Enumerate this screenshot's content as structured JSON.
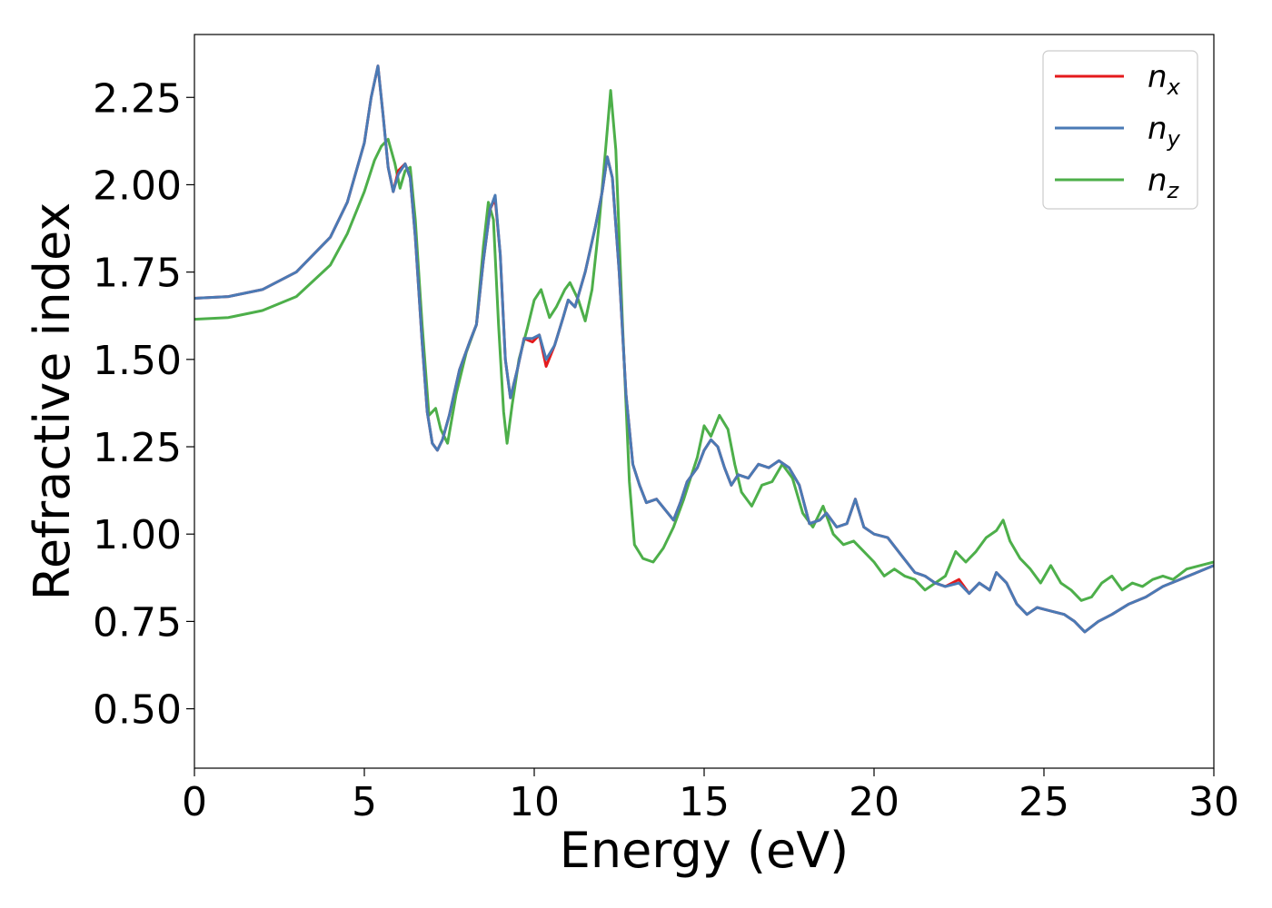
{
  "chart_data": {
    "type": "line",
    "title": "",
    "xlabel": "Energy (eV)",
    "ylabel": "Refractive index",
    "xlim": [
      0,
      30
    ],
    "ylim": [
      0.33,
      2.43
    ],
    "xticks": [
      0,
      5,
      10,
      15,
      20,
      25,
      30
    ],
    "xtick_labels": [
      "0",
      "5",
      "10",
      "15",
      "20",
      "25",
      "30"
    ],
    "yticks": [
      0.5,
      0.75,
      1.0,
      1.25,
      1.5,
      1.75,
      2.0,
      2.25
    ],
    "ytick_labels": [
      "0.50",
      "0.75",
      "1.00",
      "1.25",
      "1.50",
      "1.75",
      "2.00",
      "2.25"
    ],
    "grid": false,
    "legend_position": "top-right",
    "series": [
      {
        "name": "n",
        "subscript": "x",
        "color": "#e41a1c",
        "points": [
          [
            0,
            1.675
          ],
          [
            1,
            1.68
          ],
          [
            2,
            1.7
          ],
          [
            3,
            1.75
          ],
          [
            4,
            1.85
          ],
          [
            4.5,
            1.95
          ],
          [
            5,
            2.12
          ],
          [
            5.2,
            2.25
          ],
          [
            5.4,
            2.34
          ],
          [
            5.55,
            2.2
          ],
          [
            5.7,
            2.05
          ],
          [
            5.85,
            1.98
          ],
          [
            6.0,
            2.04
          ],
          [
            6.2,
            2.06
          ],
          [
            6.35,
            2.02
          ],
          [
            6.5,
            1.85
          ],
          [
            6.7,
            1.55
          ],
          [
            6.85,
            1.35
          ],
          [
            7.0,
            1.26
          ],
          [
            7.15,
            1.24
          ],
          [
            7.3,
            1.27
          ],
          [
            7.5,
            1.34
          ],
          [
            7.8,
            1.47
          ],
          [
            8.1,
            1.55
          ],
          [
            8.3,
            1.6
          ],
          [
            8.5,
            1.78
          ],
          [
            8.7,
            1.93
          ],
          [
            8.85,
            1.96
          ],
          [
            9.0,
            1.8
          ],
          [
            9.15,
            1.5
          ],
          [
            9.3,
            1.39
          ],
          [
            9.5,
            1.47
          ],
          [
            9.7,
            1.56
          ],
          [
            9.95,
            1.55
          ],
          [
            10.15,
            1.57
          ],
          [
            10.35,
            1.48
          ],
          [
            10.6,
            1.54
          ],
          [
            10.85,
            1.62
          ],
          [
            11.0,
            1.67
          ],
          [
            11.2,
            1.65
          ],
          [
            11.5,
            1.75
          ],
          [
            11.8,
            1.88
          ],
          [
            12.0,
            1.98
          ],
          [
            12.15,
            2.08
          ],
          [
            12.3,
            2.02
          ],
          [
            12.5,
            1.75
          ],
          [
            12.7,
            1.4
          ],
          [
            12.9,
            1.2
          ],
          [
            13.1,
            1.14
          ],
          [
            13.3,
            1.09
          ],
          [
            13.6,
            1.1
          ],
          [
            13.85,
            1.07
          ],
          [
            14.1,
            1.04
          ],
          [
            14.3,
            1.09
          ],
          [
            14.5,
            1.15
          ],
          [
            14.8,
            1.19
          ],
          [
            15.0,
            1.24
          ],
          [
            15.2,
            1.27
          ],
          [
            15.4,
            1.25
          ],
          [
            15.6,
            1.19
          ],
          [
            15.8,
            1.14
          ],
          [
            16.0,
            1.17
          ],
          [
            16.3,
            1.16
          ],
          [
            16.6,
            1.2
          ],
          [
            16.9,
            1.19
          ],
          [
            17.2,
            1.21
          ],
          [
            17.5,
            1.19
          ],
          [
            17.8,
            1.14
          ],
          [
            18.1,
            1.03
          ],
          [
            18.4,
            1.04
          ],
          [
            18.6,
            1.06
          ],
          [
            18.9,
            1.02
          ],
          [
            19.2,
            1.03
          ],
          [
            19.45,
            1.1
          ],
          [
            19.7,
            1.02
          ],
          [
            20.0,
            1.0
          ],
          [
            20.4,
            0.99
          ],
          [
            20.8,
            0.94
          ],
          [
            21.2,
            0.89
          ],
          [
            21.5,
            0.88
          ],
          [
            21.8,
            0.86
          ],
          [
            22.1,
            0.85
          ],
          [
            22.5,
            0.87
          ],
          [
            22.8,
            0.83
          ],
          [
            23.1,
            0.86
          ],
          [
            23.4,
            0.84
          ],
          [
            23.6,
            0.89
          ],
          [
            23.9,
            0.86
          ],
          [
            24.2,
            0.8
          ],
          [
            24.5,
            0.77
          ],
          [
            24.8,
            0.79
          ],
          [
            25.2,
            0.78
          ],
          [
            25.6,
            0.77
          ],
          [
            25.9,
            0.75
          ],
          [
            26.2,
            0.72
          ],
          [
            26.6,
            0.75
          ],
          [
            27.0,
            0.77
          ],
          [
            27.5,
            0.8
          ],
          [
            28.0,
            0.82
          ],
          [
            28.5,
            0.85
          ],
          [
            29.0,
            0.87
          ],
          [
            29.5,
            0.89
          ],
          [
            30.0,
            0.91
          ]
        ]
      },
      {
        "name": "n",
        "subscript": "y",
        "color": "#4a7ab5",
        "points": [
          [
            0,
            1.675
          ],
          [
            1,
            1.68
          ],
          [
            2,
            1.7
          ],
          [
            3,
            1.75
          ],
          [
            4,
            1.85
          ],
          [
            4.5,
            1.95
          ],
          [
            5,
            2.12
          ],
          [
            5.2,
            2.25
          ],
          [
            5.4,
            2.34
          ],
          [
            5.55,
            2.2
          ],
          [
            5.7,
            2.05
          ],
          [
            5.85,
            1.98
          ],
          [
            6.0,
            2.03
          ],
          [
            6.2,
            2.06
          ],
          [
            6.35,
            2.02
          ],
          [
            6.5,
            1.85
          ],
          [
            6.7,
            1.55
          ],
          [
            6.85,
            1.35
          ],
          [
            7.0,
            1.26
          ],
          [
            7.15,
            1.24
          ],
          [
            7.3,
            1.27
          ],
          [
            7.5,
            1.34
          ],
          [
            7.8,
            1.47
          ],
          [
            8.1,
            1.55
          ],
          [
            8.3,
            1.6
          ],
          [
            8.5,
            1.78
          ],
          [
            8.7,
            1.93
          ],
          [
            8.85,
            1.97
          ],
          [
            9.0,
            1.8
          ],
          [
            9.15,
            1.5
          ],
          [
            9.3,
            1.39
          ],
          [
            9.5,
            1.47
          ],
          [
            9.7,
            1.56
          ],
          [
            9.95,
            1.56
          ],
          [
            10.15,
            1.57
          ],
          [
            10.35,
            1.5
          ],
          [
            10.6,
            1.54
          ],
          [
            10.85,
            1.62
          ],
          [
            11.0,
            1.67
          ],
          [
            11.2,
            1.65
          ],
          [
            11.5,
            1.75
          ],
          [
            11.8,
            1.88
          ],
          [
            12.0,
            1.98
          ],
          [
            12.15,
            2.08
          ],
          [
            12.3,
            2.02
          ],
          [
            12.5,
            1.75
          ],
          [
            12.7,
            1.4
          ],
          [
            12.9,
            1.2
          ],
          [
            13.1,
            1.14
          ],
          [
            13.3,
            1.09
          ],
          [
            13.6,
            1.1
          ],
          [
            13.85,
            1.07
          ],
          [
            14.1,
            1.04
          ],
          [
            14.3,
            1.09
          ],
          [
            14.5,
            1.15
          ],
          [
            14.8,
            1.19
          ],
          [
            15.0,
            1.24
          ],
          [
            15.2,
            1.27
          ],
          [
            15.4,
            1.25
          ],
          [
            15.6,
            1.19
          ],
          [
            15.8,
            1.14
          ],
          [
            16.0,
            1.17
          ],
          [
            16.3,
            1.16
          ],
          [
            16.6,
            1.2
          ],
          [
            16.9,
            1.19
          ],
          [
            17.2,
            1.21
          ],
          [
            17.5,
            1.19
          ],
          [
            17.8,
            1.14
          ],
          [
            18.1,
            1.03
          ],
          [
            18.4,
            1.04
          ],
          [
            18.6,
            1.06
          ],
          [
            18.9,
            1.02
          ],
          [
            19.2,
            1.03
          ],
          [
            19.45,
            1.1
          ],
          [
            19.7,
            1.02
          ],
          [
            20.0,
            1.0
          ],
          [
            20.4,
            0.99
          ],
          [
            20.8,
            0.94
          ],
          [
            21.2,
            0.89
          ],
          [
            21.5,
            0.88
          ],
          [
            21.8,
            0.86
          ],
          [
            22.1,
            0.85
          ],
          [
            22.5,
            0.86
          ],
          [
            22.8,
            0.83
          ],
          [
            23.1,
            0.86
          ],
          [
            23.4,
            0.84
          ],
          [
            23.6,
            0.89
          ],
          [
            23.9,
            0.86
          ],
          [
            24.2,
            0.8
          ],
          [
            24.5,
            0.77
          ],
          [
            24.8,
            0.79
          ],
          [
            25.2,
            0.78
          ],
          [
            25.6,
            0.77
          ],
          [
            25.9,
            0.75
          ],
          [
            26.2,
            0.72
          ],
          [
            26.6,
            0.75
          ],
          [
            27.0,
            0.77
          ],
          [
            27.5,
            0.8
          ],
          [
            28.0,
            0.82
          ],
          [
            28.5,
            0.85
          ],
          [
            29.0,
            0.87
          ],
          [
            29.5,
            0.89
          ],
          [
            30.0,
            0.91
          ]
        ]
      },
      {
        "name": "n",
        "subscript": "z",
        "color": "#4daf4a",
        "points": [
          [
            0,
            1.615
          ],
          [
            1,
            1.62
          ],
          [
            2,
            1.64
          ],
          [
            3,
            1.68
          ],
          [
            4,
            1.77
          ],
          [
            4.5,
            1.86
          ],
          [
            5.0,
            1.98
          ],
          [
            5.3,
            2.07
          ],
          [
            5.5,
            2.11
          ],
          [
            5.7,
            2.13
          ],
          [
            5.9,
            2.06
          ],
          [
            6.05,
            1.99
          ],
          [
            6.2,
            2.04
          ],
          [
            6.35,
            2.05
          ],
          [
            6.5,
            1.9
          ],
          [
            6.7,
            1.6
          ],
          [
            6.9,
            1.34
          ],
          [
            7.1,
            1.36
          ],
          [
            7.25,
            1.3
          ],
          [
            7.45,
            1.26
          ],
          [
            7.7,
            1.4
          ],
          [
            8.0,
            1.52
          ],
          [
            8.3,
            1.6
          ],
          [
            8.5,
            1.82
          ],
          [
            8.65,
            1.95
          ],
          [
            8.8,
            1.9
          ],
          [
            8.95,
            1.6
          ],
          [
            9.1,
            1.35
          ],
          [
            9.2,
            1.26
          ],
          [
            9.35,
            1.37
          ],
          [
            9.55,
            1.5
          ],
          [
            9.8,
            1.59
          ],
          [
            10.0,
            1.67
          ],
          [
            10.2,
            1.7
          ],
          [
            10.45,
            1.62
          ],
          [
            10.65,
            1.65
          ],
          [
            10.9,
            1.7
          ],
          [
            11.05,
            1.72
          ],
          [
            11.3,
            1.67
          ],
          [
            11.5,
            1.61
          ],
          [
            11.7,
            1.7
          ],
          [
            11.9,
            1.88
          ],
          [
            12.1,
            2.1
          ],
          [
            12.25,
            2.27
          ],
          [
            12.4,
            2.1
          ],
          [
            12.6,
            1.6
          ],
          [
            12.8,
            1.15
          ],
          [
            12.95,
            0.97
          ],
          [
            13.2,
            0.93
          ],
          [
            13.5,
            0.92
          ],
          [
            13.8,
            0.96
          ],
          [
            14.1,
            1.02
          ],
          [
            14.4,
            1.1
          ],
          [
            14.6,
            1.16
          ],
          [
            14.8,
            1.22
          ],
          [
            15.0,
            1.31
          ],
          [
            15.2,
            1.28
          ],
          [
            15.45,
            1.34
          ],
          [
            15.7,
            1.3
          ],
          [
            15.9,
            1.2
          ],
          [
            16.1,
            1.12
          ],
          [
            16.4,
            1.08
          ],
          [
            16.7,
            1.14
          ],
          [
            17.0,
            1.15
          ],
          [
            17.3,
            1.2
          ],
          [
            17.6,
            1.16
          ],
          [
            17.9,
            1.06
          ],
          [
            18.2,
            1.02
          ],
          [
            18.5,
            1.08
          ],
          [
            18.8,
            1.0
          ],
          [
            19.1,
            0.97
          ],
          [
            19.4,
            0.98
          ],
          [
            19.7,
            0.95
          ],
          [
            20.0,
            0.92
          ],
          [
            20.3,
            0.88
          ],
          [
            20.6,
            0.9
          ],
          [
            20.9,
            0.88
          ],
          [
            21.2,
            0.87
          ],
          [
            21.5,
            0.84
          ],
          [
            21.8,
            0.86
          ],
          [
            22.1,
            0.88
          ],
          [
            22.4,
            0.95
          ],
          [
            22.7,
            0.92
          ],
          [
            23.0,
            0.95
          ],
          [
            23.3,
            0.99
          ],
          [
            23.6,
            1.01
          ],
          [
            23.8,
            1.04
          ],
          [
            24.0,
            0.98
          ],
          [
            24.3,
            0.93
          ],
          [
            24.6,
            0.9
          ],
          [
            24.9,
            0.86
          ],
          [
            25.2,
            0.91
          ],
          [
            25.5,
            0.86
          ],
          [
            25.8,
            0.84
          ],
          [
            26.1,
            0.81
          ],
          [
            26.4,
            0.82
          ],
          [
            26.7,
            0.86
          ],
          [
            27.0,
            0.88
          ],
          [
            27.3,
            0.84
          ],
          [
            27.6,
            0.86
          ],
          [
            27.9,
            0.85
          ],
          [
            28.2,
            0.87
          ],
          [
            28.5,
            0.88
          ],
          [
            28.8,
            0.87
          ],
          [
            29.2,
            0.9
          ],
          [
            29.6,
            0.91
          ],
          [
            30.0,
            0.92
          ]
        ]
      }
    ]
  }
}
